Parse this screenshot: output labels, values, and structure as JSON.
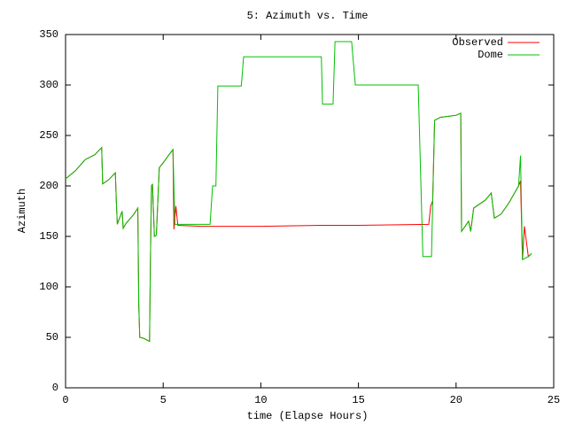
{
  "chart_data": {
    "type": "line",
    "title": "5: Azimuth vs. Time",
    "x_label": "time (Elapse Hours)",
    "y_label": "Azimuth",
    "xlim": [
      0,
      25
    ],
    "xticks": [
      0,
      5,
      10,
      15,
      20,
      25
    ],
    "ylim": [
      0,
      350
    ],
    "yticks": [
      0,
      50,
      100,
      150,
      200,
      250,
      300,
      350
    ],
    "grid": false,
    "legend": "top-right",
    "series": [
      {
        "name": "Observed",
        "color": "#ff0000",
        "x": [
          0,
          0.5,
          1,
          1.5,
          1.85,
          1.9,
          2.2,
          2.55,
          2.6,
          2.65,
          2.8,
          2.9,
          2.95,
          3.1,
          3.5,
          3.7,
          3.75,
          3.8,
          4.0,
          4.3,
          4.35,
          4.4,
          4.45,
          4.55,
          4.65,
          4.8,
          5.0,
          5.3,
          5.5,
          5.55,
          5.65,
          5.75,
          7.0,
          10.0,
          13.1,
          15.0,
          18.6,
          18.7,
          18.8,
          18.9,
          19.2,
          20.0,
          20.24,
          20.28,
          20.64,
          20.75,
          20.9,
          21.5,
          21.8,
          21.96,
          22.3,
          22.7,
          23.2,
          23.3,
          23.4,
          23.5,
          23.7,
          23.87
        ],
        "values": [
          207,
          215,
          226,
          231,
          238,
          202,
          206,
          213,
          185,
          162,
          170,
          175,
          158,
          163,
          172,
          178,
          82,
          50,
          49,
          46,
          130,
          200,
          202,
          150,
          151,
          218,
          223,
          231,
          236,
          157,
          180,
          161,
          160,
          160,
          161,
          161,
          162,
          180,
          185,
          265,
          268,
          270,
          272,
          155,
          165,
          155,
          178,
          186,
          193,
          168,
          172,
          183,
          200,
          205,
          127,
          160,
          130,
          133
        ]
      },
      {
        "name": "Dome",
        "color": "#00c000",
        "x": [
          0,
          0.5,
          1,
          1.5,
          1.85,
          1.9,
          2.2,
          2.55,
          2.6,
          2.65,
          2.8,
          2.9,
          2.95,
          3.1,
          3.5,
          3.7,
          3.75,
          3.8,
          4.0,
          4.3,
          4.35,
          4.4,
          4.45,
          4.55,
          4.65,
          4.8,
          5.0,
          5.3,
          5.5,
          5.6,
          7.4,
          7.53,
          7.7,
          7.8,
          9.0,
          9.12,
          13.1,
          13.16,
          13.7,
          13.8,
          14.65,
          14.84,
          18.06,
          18.3,
          18.74,
          18.9,
          19.2,
          20.0,
          20.24,
          20.28,
          20.64,
          20.75,
          20.9,
          21.5,
          21.8,
          21.96,
          22.3,
          22.7,
          23.2,
          23.3,
          23.4,
          23.7,
          23.87
        ],
        "values": [
          207,
          215,
          226,
          231,
          238,
          202,
          206,
          213,
          185,
          162,
          170,
          175,
          158,
          163,
          172,
          178,
          82,
          50,
          49,
          46,
          130,
          200,
          202,
          150,
          151,
          218,
          223,
          231,
          236,
          162,
          162,
          200,
          200,
          299,
          299,
          328,
          328,
          281,
          281,
          343,
          343,
          300,
          300,
          130,
          130,
          265,
          268,
          270,
          272,
          155,
          165,
          155,
          178,
          186,
          193,
          168,
          172,
          183,
          200,
          230,
          127,
          130,
          133
        ]
      }
    ]
  }
}
